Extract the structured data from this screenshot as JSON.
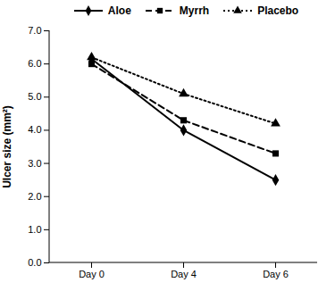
{
  "chart_data": {
    "type": "line",
    "y_label": "Ulcer size (mm²)",
    "categories": [
      "Day 0",
      "Day 4",
      "Day 6"
    ],
    "series": [
      {
        "name": "Aloe",
        "color": "#000000",
        "marker": "diamond",
        "line_style": "solid",
        "values": [
          6.15,
          4.0,
          2.5
        ]
      },
      {
        "name": "Myrrh",
        "color": "#000000",
        "marker": "square",
        "line_style": "dashed",
        "values": [
          6.0,
          4.3,
          3.3
        ]
      },
      {
        "name": "Placebo",
        "color": "#000000",
        "marker": "triangle",
        "line_style": "dotted",
        "values": [
          6.2,
          5.1,
          4.2
        ]
      }
    ],
    "ylim": [
      0,
      7
    ],
    "yticks": [
      {
        "value": 0,
        "label": "0.0"
      },
      {
        "value": 1,
        "label": "1.0"
      },
      {
        "value": 2,
        "label": "2.0"
      },
      {
        "value": 3,
        "label": "3.0"
      },
      {
        "value": 4,
        "label": "4.0"
      },
      {
        "value": 5,
        "label": "5.0"
      },
      {
        "value": 6,
        "label": "6.0"
      },
      {
        "value": 7,
        "label": "7.0"
      }
    ],
    "grid": false,
    "legend": "top"
  }
}
